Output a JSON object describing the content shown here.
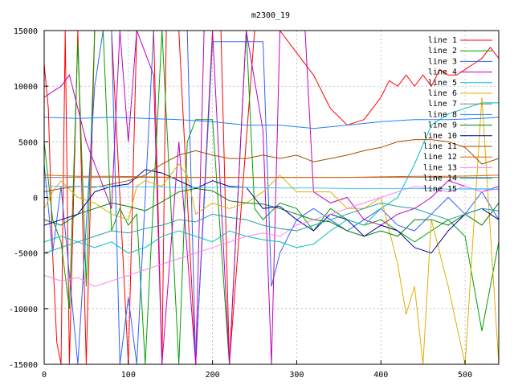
{
  "chart_data": {
    "type": "line",
    "title": "m2300_19",
    "xlabel": "",
    "ylabel": "",
    "xlim": [
      0,
      540
    ],
    "ylim": [
      -15000,
      15000
    ],
    "x_ticks": [
      "0",
      "100",
      "200",
      "300",
      "400",
      "500"
    ],
    "y_ticks": [
      "15000",
      "10000",
      "5000",
      "0",
      "-5000",
      "-10000",
      "-15000"
    ],
    "grid": true,
    "legend_position": "top-right",
    "series": [
      {
        "name": "line 1",
        "color": "#ff0000",
        "x": [
          0,
          5,
          10,
          15,
          20,
          25,
          30,
          40,
          50,
          60,
          80,
          100,
          110,
          130,
          140,
          145,
          150,
          160,
          180,
          200,
          210,
          220,
          250,
          280,
          300,
          320,
          340,
          360,
          380,
          400,
          410,
          420,
          430,
          440,
          450,
          460,
          470,
          480,
          490,
          500,
          510,
          520,
          530,
          540
        ],
        "y": [
          12000,
          8000,
          -5000,
          -13000,
          -15000,
          15000,
          -15000,
          15000,
          -15000,
          15000,
          15000,
          -15000,
          15000,
          15000,
          -15000,
          15000,
          15000,
          15000,
          -15000,
          15000,
          15000,
          -15000,
          15000,
          15000,
          13000,
          11000,
          8000,
          6500,
          7000,
          9000,
          10500,
          10000,
          11000,
          10000,
          11000,
          10000,
          11500,
          11000,
          11000,
          11500,
          12000,
          12500,
          13500,
          12500
        ]
      },
      {
        "name": "line 2",
        "color": "#00a000",
        "x": [
          0,
          10,
          20,
          30,
          40,
          50,
          60,
          70,
          80,
          90,
          100,
          110,
          120,
          140,
          160,
          170,
          180,
          200,
          220,
          240,
          250,
          260,
          280,
          300,
          320,
          340,
          360,
          380,
          400,
          420,
          440,
          460,
          480,
          500,
          520,
          540
        ],
        "y": [
          5000,
          -2000,
          -4000,
          -10000,
          14000,
          -8000,
          15000,
          15000,
          -3000,
          -1000,
          -2500,
          -1500,
          -15000,
          15000,
          -15000,
          5000,
          7000,
          7000,
          -15000,
          15000,
          -1000,
          -2000,
          -500,
          -1000,
          -3000,
          -1000,
          -2000,
          -2500,
          -2000,
          -3000,
          -4000,
          -3000,
          -2000,
          -3500,
          -12000,
          -4000
        ]
      },
      {
        "name": "line 3",
        "color": "#3060ff",
        "x": [
          0,
          10,
          20,
          40,
          60,
          70,
          80,
          90,
          95,
          100,
          110,
          130,
          150,
          170,
          180,
          200,
          220,
          240,
          260,
          270,
          280,
          300,
          320,
          340,
          360,
          380,
          400,
          420,
          440,
          460,
          480,
          500,
          520,
          540
        ],
        "y": [
          3000,
          -5000,
          1000,
          -15000,
          10000,
          15000,
          15000,
          -15000,
          -12000,
          -9000,
          -15000,
          15000,
          15000,
          15000,
          -15000,
          14000,
          14000,
          14000,
          14000,
          -8000,
          -5000,
          -2000,
          -1000,
          -2000,
          -3000,
          -2000,
          -1000,
          -2500,
          -3000,
          -1500,
          0,
          -1500,
          500,
          -2000
        ]
      },
      {
        "name": "line 4",
        "color": "#c000c0",
        "x": [
          0,
          10,
          20,
          30,
          40,
          50,
          60,
          80,
          90,
          100,
          110,
          120,
          130,
          140,
          160,
          180,
          190,
          200,
          220,
          240,
          260,
          270,
          280,
          300,
          310,
          320,
          340,
          360,
          380,
          400,
          420,
          440,
          460,
          480,
          500,
          520,
          540
        ],
        "y": [
          9000,
          9500,
          10000,
          11000,
          8000,
          5000,
          3000,
          -1000,
          15000,
          5000,
          15000,
          13000,
          11000,
          -15000,
          5000,
          -15000,
          15000,
          15000,
          -15000,
          15000,
          6000,
          -15000,
          15000,
          15000,
          15000,
          500,
          -500,
          0,
          -2000,
          -2500,
          -1500,
          -1000,
          0,
          1500,
          1000,
          500,
          1000
        ]
      },
      {
        "name": "line 5",
        "color": "#00c0c0",
        "x": [
          0,
          20,
          40,
          60,
          80,
          100,
          120,
          140,
          160,
          180,
          200,
          220,
          240,
          260,
          280,
          300,
          320,
          340,
          360,
          380,
          400,
          420,
          440,
          460,
          480,
          500,
          520,
          540
        ],
        "y": [
          -4000,
          -3500,
          -4000,
          -4500,
          -4000,
          -5000,
          -4500,
          -3500,
          -3000,
          -3500,
          -4000,
          -3000,
          -3500,
          -3800,
          -4000,
          -4500,
          -4200,
          -3000,
          -2000,
          -2500,
          -1000,
          0,
          3000,
          6500,
          7500,
          8000,
          8500,
          8500
        ]
      },
      {
        "name": "line 6",
        "color": "#e0b000",
        "x": [
          0,
          10,
          20,
          40,
          60,
          80,
          100,
          110,
          120,
          140,
          160,
          170,
          180,
          200,
          220,
          240,
          260,
          280,
          300,
          320,
          340,
          360,
          380,
          400,
          420,
          430,
          440,
          450,
          460,
          470,
          480,
          500,
          520,
          540
        ],
        "y": [
          -1000,
          500,
          1500,
          0,
          -500,
          -1500,
          -2000,
          1000,
          1500,
          1000,
          3000,
          2000,
          -1500,
          -500,
          -1000,
          -500,
          500,
          2000,
          500,
          500,
          500,
          -1000,
          -1000,
          0,
          -6000,
          -10500,
          -8000,
          -15000,
          -2000,
          -5000,
          -8000,
          -15000,
          9000,
          -15000
        ]
      },
      {
        "name": "line 7",
        "color": "#808080",
        "x": [
          0,
          540
        ],
        "y": [
          1800,
          1800
        ]
      },
      {
        "name": "line 8",
        "color": "#2080ff",
        "x": [
          0,
          40,
          80,
          120,
          160,
          200,
          240,
          280,
          320,
          360,
          400,
          440,
          480,
          520,
          540
        ],
        "y": [
          7200,
          7100,
          7200,
          7100,
          7000,
          6800,
          6500,
          6500,
          6200,
          6500,
          6800,
          7000,
          7000,
          7100,
          7200
        ]
      },
      {
        "name": "line 9",
        "color": "#008000",
        "x": [
          0,
          20,
          40,
          60,
          80,
          100,
          120,
          140,
          160,
          180,
          200,
          220,
          240,
          260,
          280,
          300,
          320,
          340,
          360,
          380,
          400,
          420,
          440,
          460,
          480,
          500,
          520,
          540
        ],
        "y": [
          -2000,
          -2500,
          -1500,
          -1000,
          -500,
          -800,
          -1200,
          -400,
          500,
          800,
          600,
          -300,
          -500,
          -600,
          -1000,
          -1500,
          -2000,
          -2200,
          -3000,
          -3500,
          -3000,
          -3500,
          -2000,
          -2000,
          -2500,
          -1500,
          -2500,
          -500
        ]
      },
      {
        "name": "line 10",
        "color": "#0000a0",
        "x": [
          0,
          20,
          40,
          60,
          80,
          100,
          120,
          140,
          160,
          180,
          200,
          220,
          240,
          260,
          280,
          300,
          320,
          340,
          360,
          380,
          400,
          420,
          440,
          460,
          480,
          500,
          520,
          540
        ],
        "y": [
          -2500,
          -2000,
          -1500,
          500,
          1000,
          1200,
          2500,
          2200,
          1500,
          800,
          1500,
          1000,
          900,
          -1000,
          -800,
          -2000,
          -3000,
          -1500,
          -2000,
          -3500,
          -2500,
          -3000,
          -4500,
          -5000,
          -3000,
          -1500,
          -1000,
          -2000
        ]
      },
      {
        "name": "line 11",
        "color": "#a05000",
        "x": [
          0,
          20,
          40,
          60,
          80,
          100,
          120,
          140,
          160,
          180,
          200,
          220,
          240,
          260,
          280,
          300,
          320,
          340,
          360,
          380,
          400,
          420,
          440,
          460,
          480,
          500,
          520,
          540
        ],
        "y": [
          500,
          800,
          1000,
          900,
          1200,
          1500,
          2000,
          3000,
          3800,
          4200,
          3800,
          3500,
          3500,
          3800,
          3500,
          3800,
          3200,
          3500,
          3800,
          4200,
          4500,
          5000,
          5200,
          5200,
          5000,
          4500,
          3000,
          3500
        ]
      },
      {
        "name": "line 12",
        "color": "#e06000",
        "x": [
          0,
          40,
          80,
          120,
          160,
          200,
          240,
          280,
          320,
          360,
          400,
          440,
          480,
          520,
          540
        ],
        "y": [
          2000,
          1900,
          1900,
          1850,
          1800,
          1800,
          1800,
          1800,
          1800,
          1800,
          1850,
          1900,
          1900,
          1950,
          2000
        ]
      },
      {
        "name": "line 13",
        "color": "#ff80ff",
        "x": [
          0,
          20,
          40,
          60,
          80,
          100,
          120,
          140,
          160,
          180,
          200,
          220,
          240,
          260,
          280,
          300,
          320,
          340,
          360,
          380,
          400,
          420,
          440,
          460,
          480,
          500,
          520,
          540
        ],
        "y": [
          -7000,
          -7500,
          -7200,
          -8000,
          -7500,
          -7000,
          -6500,
          -6000,
          -5500,
          -5000,
          -4500,
          -4000,
          -3500,
          -3200,
          -3500,
          -2500,
          -2000,
          -1500,
          -1000,
          -500,
          0,
          500,
          1000,
          800,
          500,
          1000,
          500,
          800
        ]
      },
      {
        "name": "line 14",
        "color": "#20a0a0",
        "x": [
          0,
          20,
          40,
          60,
          80,
          100,
          120,
          140,
          160,
          180,
          200,
          220,
          240,
          260,
          280,
          300,
          320,
          340,
          360,
          380,
          400,
          420,
          440,
          460,
          480,
          500,
          520,
          540
        ],
        "y": [
          -5000,
          -4500,
          -4000,
          -3500,
          -3000,
          -3200,
          -2800,
          -2500,
          -2000,
          -2200,
          -1500,
          -1800,
          -2000,
          -2500,
          -2800,
          -3000,
          -2500,
          -2000,
          -1500,
          -1000,
          -500,
          -800,
          -1000,
          -1500,
          -2000,
          -1500,
          -1000,
          -1200
        ]
      },
      {
        "name": "line 15",
        "color": "#40c0ff",
        "x": [
          0,
          40,
          80,
          120,
          160,
          200,
          240,
          280,
          320,
          360,
          400,
          440,
          480,
          520,
          540
        ],
        "y": [
          1000,
          1000,
          950,
          950,
          900,
          900,
          900,
          850,
          850,
          800,
          800,
          800,
          750,
          750,
          700
        ]
      }
    ]
  }
}
